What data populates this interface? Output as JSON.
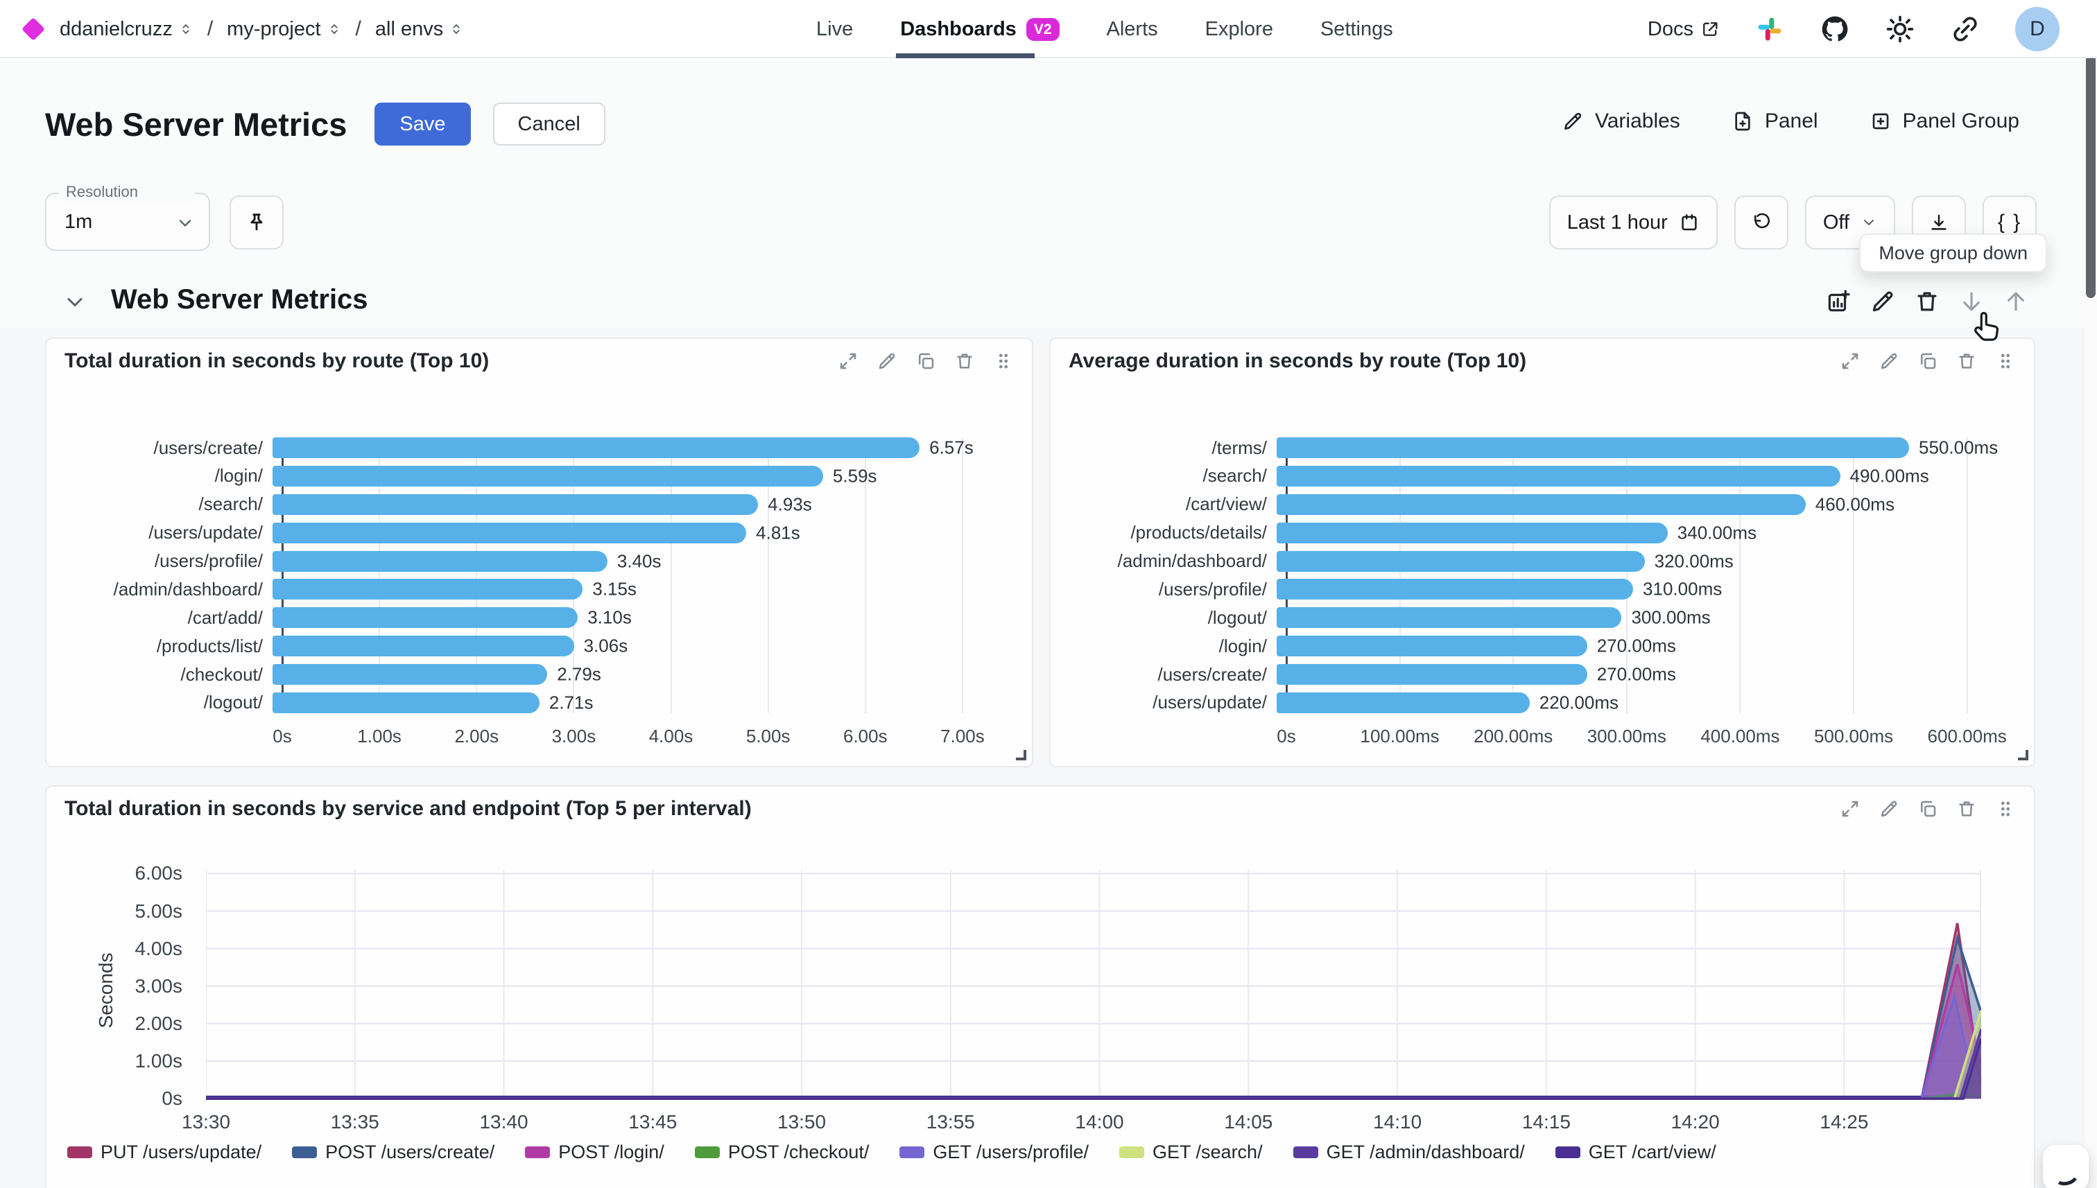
{
  "topnav": {
    "breadcrumb": [
      {
        "label": "ddanielcruzz"
      },
      {
        "label": "my-project"
      },
      {
        "label": "all envs"
      }
    ],
    "separator": "/",
    "tabs": [
      {
        "label": "Live"
      },
      {
        "label": "Dashboards",
        "badge": "V2"
      },
      {
        "label": "Alerts"
      },
      {
        "label": "Explore"
      },
      {
        "label": "Settings"
      }
    ],
    "docs_label": "Docs",
    "avatar_initial": "D"
  },
  "header": {
    "title": "Web Server Metrics",
    "save_label": "Save",
    "cancel_label": "Cancel",
    "variables_label": "Variables",
    "panel_label": "Panel",
    "panel_group_label": "Panel Group"
  },
  "toolbar": {
    "resolution_label": "Resolution",
    "resolution_value": "1m",
    "time_range": "Last 1 hour",
    "refresh_value": "Off",
    "braces_label": "{ }",
    "tooltip": "Move group down"
  },
  "group": {
    "title": "Web Server Metrics"
  },
  "colors": {
    "accent_magenta": "#d92ad9",
    "save_blue": "#3f6bd9",
    "bar_blue": "#57b1e8"
  },
  "chart_data": [
    {
      "type": "bar",
      "orientation": "horizontal",
      "title": "Total duration in seconds by route (Top 10)",
      "categories": [
        "/users/create/",
        "/login/",
        "/search/",
        "/users/update/",
        "/users/profile/",
        "/admin/dashboard/",
        "/cart/add/",
        "/products/list/",
        "/checkout/",
        "/logout/"
      ],
      "values": [
        6.57,
        5.59,
        4.93,
        4.81,
        3.4,
        3.15,
        3.1,
        3.06,
        2.79,
        2.71
      ],
      "value_labels": [
        "6.57s",
        "5.59s",
        "4.93s",
        "4.81s",
        "3.40s",
        "3.15s",
        "3.10s",
        "3.06s",
        "2.79s",
        "2.71s"
      ],
      "x_ticks": [
        "0s",
        "1.00s",
        "2.00s",
        "3.00s",
        "4.00s",
        "5.00s",
        "6.00s",
        "7.00s"
      ],
      "x_tick_values": [
        0,
        1,
        2,
        3,
        4,
        5,
        6,
        7
      ],
      "x_max": 7.4,
      "bar_color": "#57b1e8",
      "grid": true
    },
    {
      "type": "bar",
      "orientation": "horizontal",
      "title": "Average duration in seconds by route (Top 10)",
      "categories": [
        "/terms/",
        "/search/",
        "/cart/view/",
        "/products/details/",
        "/admin/dashboard/",
        "/users/profile/",
        "/logout/",
        "/login/",
        "/users/create/",
        "/users/update/"
      ],
      "values": [
        550,
        490,
        460,
        340,
        320,
        310,
        300,
        270,
        270,
        220
      ],
      "value_labels": [
        "550.00ms",
        "490.00ms",
        "460.00ms",
        "340.00ms",
        "320.00ms",
        "310.00ms",
        "300.00ms",
        "270.00ms",
        "270.00ms",
        "220.00ms"
      ],
      "x_ticks": [
        "0s",
        "100.00ms",
        "200.00ms",
        "300.00ms",
        "400.00ms",
        "500.00ms",
        "600.00ms"
      ],
      "x_tick_values": [
        0,
        100,
        200,
        300,
        400,
        500,
        600
      ],
      "x_max": 632,
      "bar_color": "#57b1e8",
      "grid": true
    },
    {
      "type": "area",
      "title": "Total duration in seconds by service and endpoint (Top 5 per interval)",
      "ylabel": "Seconds",
      "y_ticks": [
        "0s",
        "1.00s",
        "2.00s",
        "3.00s",
        "4.00s",
        "5.00s",
        "6.00s"
      ],
      "y_tick_values": [
        0,
        1,
        2,
        3,
        4,
        5,
        6
      ],
      "y_max": 6.1,
      "x_ticks": [
        "13:30",
        "13:35",
        "13:40",
        "13:45",
        "13:50",
        "13:55",
        "14:00",
        "14:05",
        "14:10",
        "14:15",
        "14:20",
        "14:25"
      ],
      "x_tick_minutes": [
        0,
        5,
        10,
        15,
        20,
        25,
        30,
        35,
        40,
        45,
        50,
        55
      ],
      "x_max": 59.6,
      "grid": true,
      "legend_position": "bottom",
      "baseline_color": "#3b2e8f",
      "series": [
        {
          "name": "PUT /users/update/",
          "color": "#a23567",
          "points": [
            [
              0,
              0
            ],
            [
              57.6,
              0
            ],
            [
              58.8,
              4.68
            ],
            [
              59.6,
              0.3
            ]
          ]
        },
        {
          "name": "POST /users/create/",
          "color": "#3d5e95",
          "points": [
            [
              0,
              0
            ],
            [
              57.6,
              0
            ],
            [
              58.8,
              4.28
            ],
            [
              59.6,
              2.3
            ]
          ]
        },
        {
          "name": "POST /login/",
          "color": "#b13ba4",
          "points": [
            [
              0,
              0
            ],
            [
              57.6,
              0
            ],
            [
              58.8,
              3.58
            ],
            [
              59.6,
              0.9
            ]
          ]
        },
        {
          "name": "POST /checkout/",
          "color": "#4f9b3c",
          "points": [
            [
              0,
              0
            ],
            [
              57.6,
              0
            ],
            [
              58.7,
              0.12
            ],
            [
              59.6,
              0.08
            ]
          ]
        },
        {
          "name": "GET /users/profile/",
          "color": "#7566d2",
          "points": [
            [
              0,
              0
            ],
            [
              57.6,
              0
            ],
            [
              58.7,
              2.72
            ],
            [
              59.45,
              0.04
            ],
            [
              59.6,
              0.04
            ]
          ]
        },
        {
          "name": "GET /search/",
          "color": "#cfe180",
          "points": [
            [
              0,
              0
            ],
            [
              58.7,
              0
            ],
            [
              59.6,
              2.35
            ]
          ]
        },
        {
          "name": "GET /admin/dashboard/",
          "color": "#5b3aa0",
          "points": [
            [
              0,
              0
            ],
            [
              58.9,
              0
            ],
            [
              59.6,
              1.85
            ]
          ]
        },
        {
          "name": "GET /cart/view/",
          "color": "#4b2e93",
          "points": [
            [
              0,
              0
            ],
            [
              59.0,
              0
            ],
            [
              59.6,
              1.6
            ]
          ]
        }
      ]
    }
  ]
}
